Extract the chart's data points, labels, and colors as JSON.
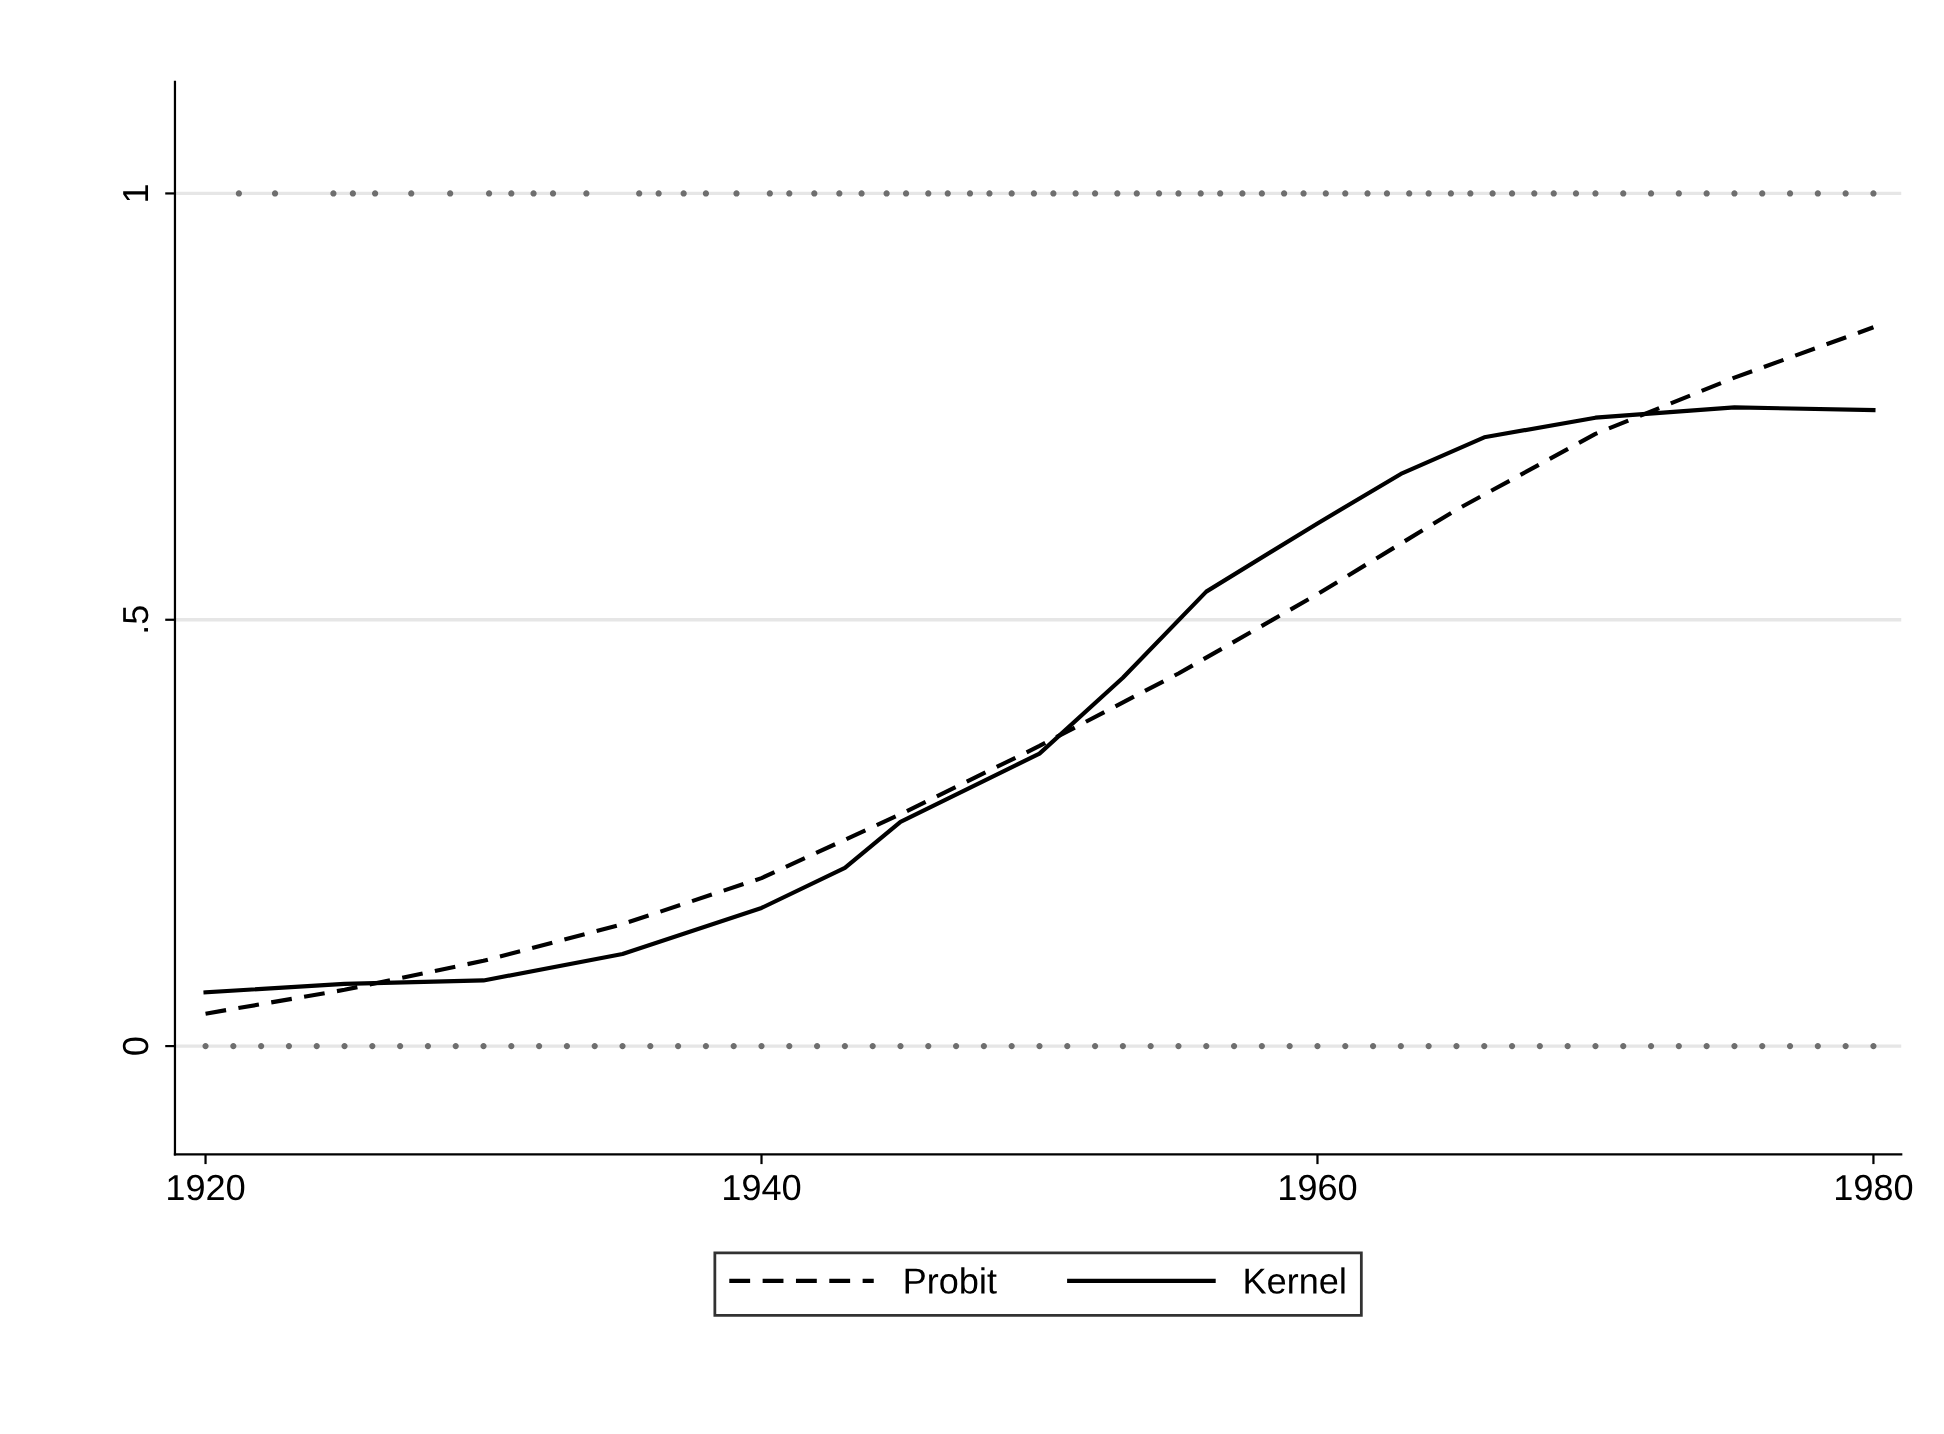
{
  "chart_data": {
    "type": "line",
    "xlim": [
      1918.9,
      1981.0
    ],
    "ylim": [
      -0.127,
      1.131
    ],
    "xticks": [
      1920,
      1940,
      1960,
      1980
    ],
    "yticks": [
      {
        "value": 0,
        "label": "0"
      },
      {
        "value": 0.5,
        "label": ".5"
      },
      {
        "value": 1,
        "label": "1"
      }
    ],
    "grid": "y",
    "legend": "bottom",
    "series": [
      {
        "type": "scatter",
        "color": "#6e6e6e",
        "marker": "circle",
        "x": [
          1921.2,
          1922.5,
          1924.6,
          1925.3,
          1926.1,
          1927.4,
          1928.8,
          1930.2,
          1931.0,
          1931.8,
          1932.5,
          1933.7,
          1935.6,
          1936.3,
          1937.2,
          1938.0,
          1939.1,
          1940.3,
          1941.0,
          1941.9,
          1942.8,
          1943.6,
          1944.5,
          1945.2,
          1946.0,
          1946.7,
          1947.5,
          1948.2,
          1949.0,
          1949.8,
          1950.5,
          1951.3,
          1952.0,
          1952.8,
          1953.5,
          1954.3,
          1955.0,
          1955.8,
          1956.5,
          1957.3,
          1958.0,
          1958.8,
          1959.5,
          1960.3,
          1961.0,
          1961.8,
          1962.5,
          1963.3,
          1964.0,
          1964.8,
          1965.5,
          1966.3,
          1967.0,
          1967.8,
          1968.5,
          1969.3,
          1970.0,
          1971.0,
          1972.0,
          1973.0,
          1974.0,
          1975.0,
          1976.0,
          1977.0,
          1978.0,
          1979.0,
          1980.0
        ],
        "values": [
          1,
          1,
          1,
          1,
          1,
          1,
          1,
          1,
          1,
          1,
          1,
          1,
          1,
          1,
          1,
          1,
          1,
          1,
          1,
          1,
          1,
          1,
          1,
          1,
          1,
          1,
          1,
          1,
          1,
          1,
          1,
          1,
          1,
          1,
          1,
          1,
          1,
          1,
          1,
          1,
          1,
          1,
          1,
          1,
          1,
          1,
          1,
          1,
          1,
          1,
          1,
          1,
          1,
          1,
          1,
          1,
          1,
          1,
          1,
          1,
          1,
          1,
          1,
          1,
          1,
          1,
          1
        ]
      },
      {
        "type": "scatter",
        "color": "#6e6e6e",
        "marker": "circle",
        "x": [
          1920,
          1921,
          1922,
          1923,
          1924,
          1925,
          1926,
          1927,
          1928,
          1929,
          1930,
          1931,
          1932,
          1933,
          1934,
          1935,
          1936,
          1937,
          1938,
          1939,
          1940,
          1941,
          1942,
          1943,
          1944,
          1945,
          1946,
          1947,
          1948,
          1949,
          1950,
          1951,
          1952,
          1953,
          1954,
          1955,
          1956,
          1957,
          1958,
          1959,
          1960,
          1961,
          1962,
          1963,
          1964,
          1965,
          1966,
          1967,
          1968,
          1969,
          1970,
          1971,
          1972,
          1973,
          1974,
          1975,
          1976,
          1977,
          1978,
          1979,
          1980
        ],
        "values": [
          0,
          0,
          0,
          0,
          0,
          0,
          0,
          0,
          0,
          0,
          0,
          0,
          0,
          0,
          0,
          0,
          0,
          0,
          0,
          0,
          0,
          0,
          0,
          0,
          0,
          0,
          0,
          0,
          0,
          0,
          0,
          0,
          0,
          0,
          0,
          0,
          0,
          0,
          0,
          0,
          0,
          0,
          0,
          0,
          0,
          0,
          0,
          0,
          0,
          0,
          0,
          0,
          0,
          0,
          0,
          0,
          0,
          0,
          0,
          0,
          0
        ]
      },
      {
        "name": "Probit",
        "color": "#000000",
        "line_style": "dashed",
        "x": [
          1920,
          1925,
          1930,
          1935,
          1940,
          1945,
          1950,
          1955,
          1960,
          1965,
          1970,
          1975,
          1980
        ],
        "values": [
          0.038,
          0.066,
          0.1,
          0.143,
          0.197,
          0.272,
          0.352,
          0.437,
          0.53,
          0.629,
          0.718,
          0.784,
          0.843
        ]
      },
      {
        "name": "Kernel",
        "color": "#000000",
        "line_style": "solid",
        "x": [
          1920,
          1925,
          1930,
          1935,
          1940,
          1943,
          1945,
          1950,
          1953,
          1956,
          1960,
          1963,
          1966,
          1970,
          1975,
          1980
        ],
        "values": [
          0.063,
          0.073,
          0.077,
          0.108,
          0.162,
          0.209,
          0.263,
          0.343,
          0.432,
          0.533,
          0.613,
          0.671,
          0.714,
          0.737,
          0.749,
          0.746
        ]
      }
    ]
  }
}
